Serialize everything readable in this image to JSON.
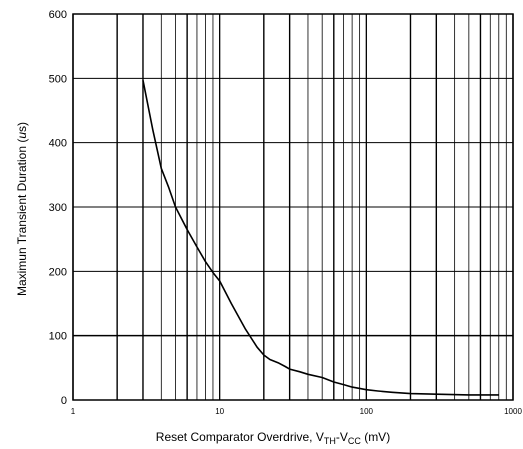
{
  "chart_data": {
    "type": "line",
    "title": "",
    "xlabel": "Reset Comparator Overdrive, V",
    "xlabel_parts": {
      "prefix": "Reset Comparator Overdrive, V",
      "sub1": "TH",
      "mid": "-V",
      "sub2": "CC",
      "suffix": " (mV)"
    },
    "ylabel": "Maximun Transient Duration (",
    "ylabel_parts": {
      "prefix": "Maximun Transient Duration (",
      "unit_italic": "u",
      "suffix": "s)"
    },
    "x_scale": "log",
    "xlim": [
      1,
      1000
    ],
    "ylim": [
      0,
      600
    ],
    "x_ticks": [
      1,
      10,
      100,
      1000
    ],
    "x_tick_labels": [
      "1",
      "10",
      "100",
      "1000"
    ],
    "y_ticks": [
      0,
      100,
      200,
      300,
      400,
      500,
      600
    ],
    "y_tick_labels": [
      "0",
      "100",
      "200",
      "300",
      "400",
      "500",
      "600"
    ],
    "grid": true,
    "series": [
      {
        "name": "",
        "x": [
          3,
          3.5,
          4,
          4.5,
          5,
          6,
          7,
          8,
          9,
          10,
          12,
          15,
          18,
          20,
          22,
          25,
          28,
          30,
          35,
          40,
          50,
          60,
          70,
          80,
          90,
          100,
          120,
          150,
          200,
          300,
          500,
          800
        ],
        "y": [
          497,
          420,
          360,
          330,
          300,
          265,
          238,
          215,
          198,
          185,
          150,
          110,
          82,
          70,
          63,
          58,
          52,
          48,
          44,
          40,
          35,
          28,
          24,
          20,
          18,
          16,
          14,
          12,
          10,
          9,
          8,
          8
        ]
      }
    ]
  }
}
